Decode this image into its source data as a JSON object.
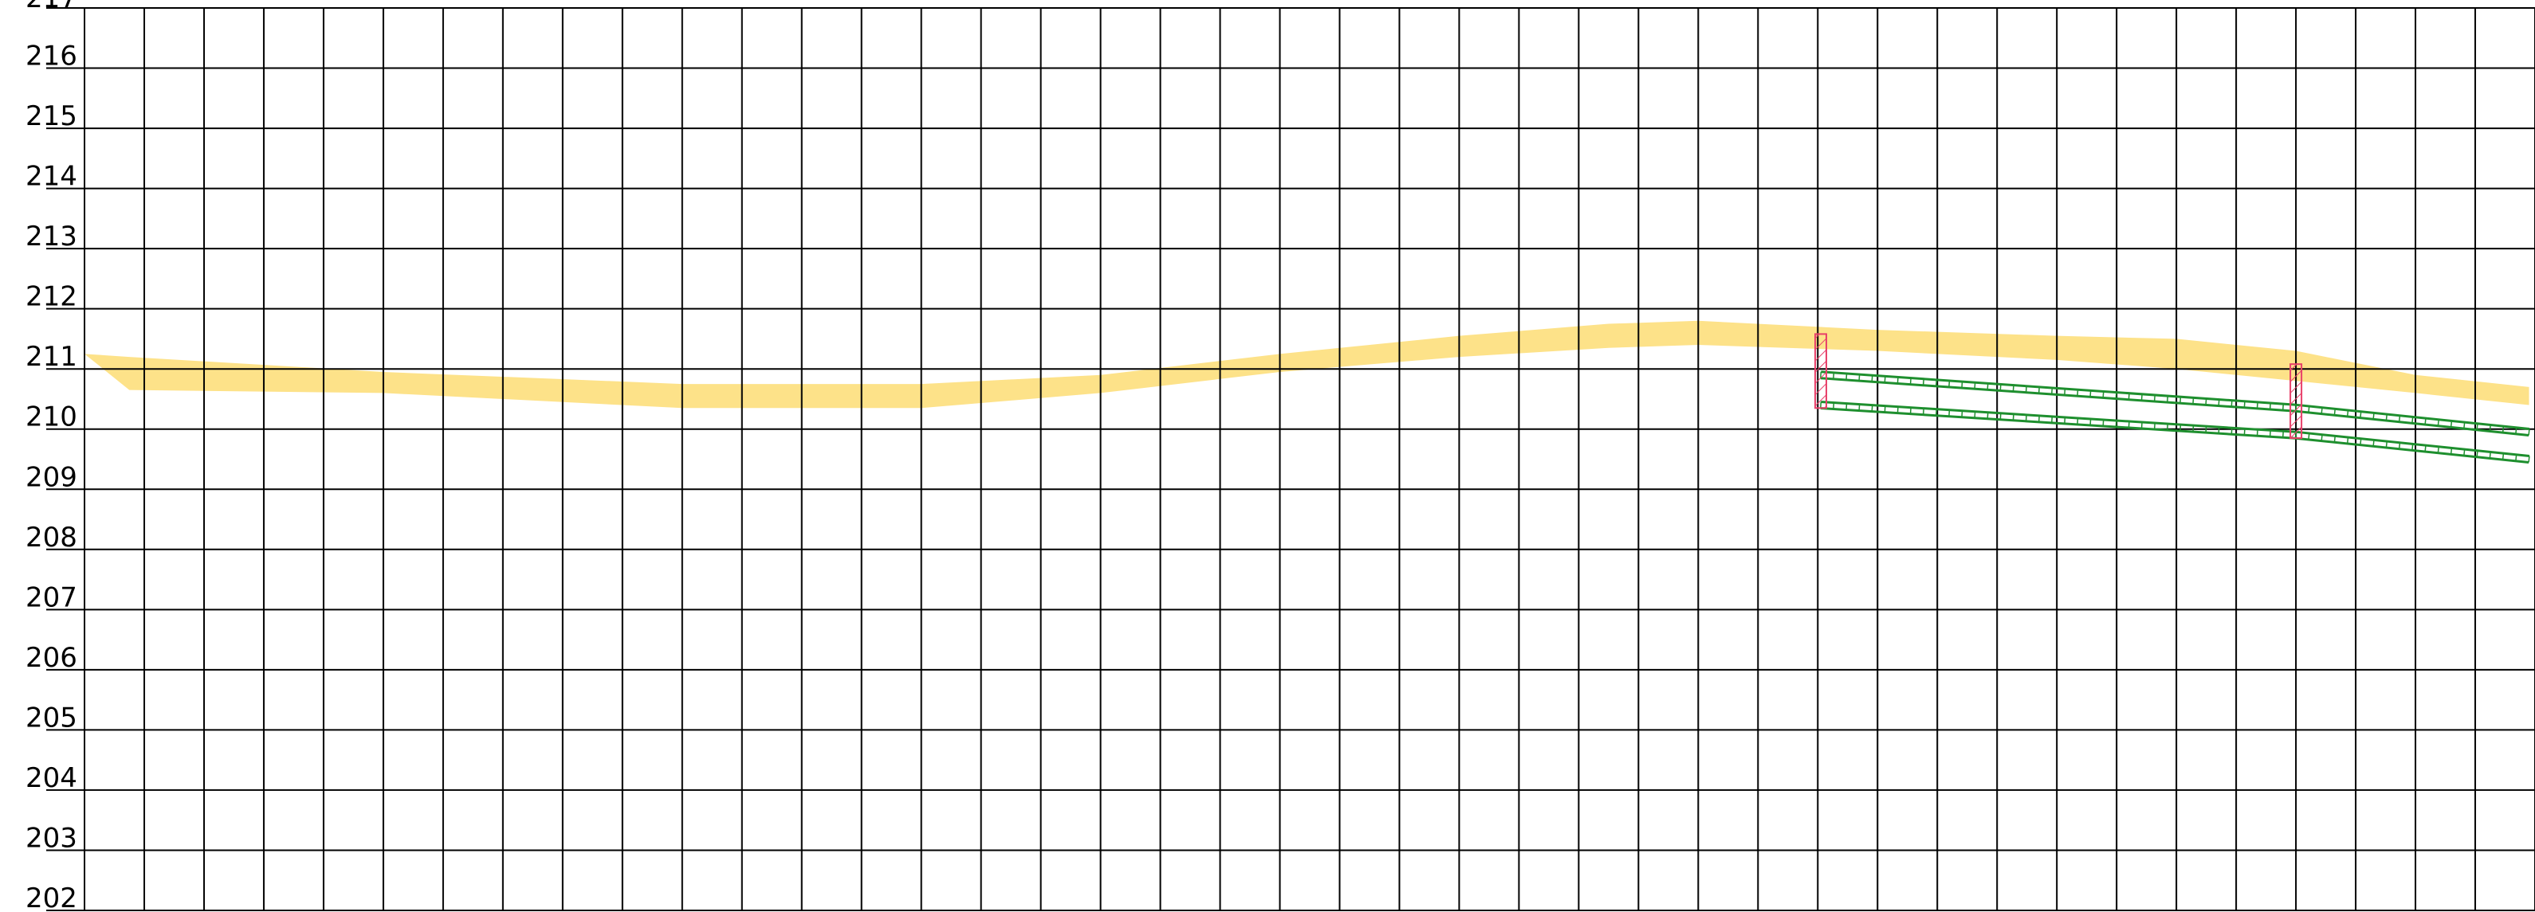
{
  "elevation_axis": {
    "min": 202,
    "max": 217,
    "labels": [
      "217",
      "216",
      "215",
      "214",
      "213",
      "212",
      "211",
      "210",
      "209",
      "208",
      "207",
      "206",
      "205",
      "204",
      "203",
      "202"
    ]
  },
  "grid": {
    "columns": 41
  },
  "colors": {
    "grid": "#000000",
    "ground": "#fde289",
    "pipe": "#1e8f2e",
    "manhole": "#e8406a",
    "background": "#ffffff"
  },
  "ground_band": [
    [
      0,
      211.25,
      211.25
    ],
    [
      0.75,
      211.2,
      210.65
    ],
    [
      5.0,
      210.95,
      210.6
    ],
    [
      10.0,
      210.75,
      210.35
    ],
    [
      14.0,
      210.75,
      210.35
    ],
    [
      17.0,
      210.9,
      210.6
    ],
    [
      20.0,
      211.25,
      210.95
    ],
    [
      23.0,
      211.55,
      211.2
    ],
    [
      25.5,
      211.75,
      211.35
    ],
    [
      27.0,
      211.8,
      211.4
    ],
    [
      30.0,
      211.65,
      211.3
    ],
    [
      33.0,
      211.55,
      211.15
    ],
    [
      35.0,
      211.5,
      211.0
    ],
    [
      37.0,
      211.3,
      210.8
    ],
    [
      39.0,
      210.9,
      210.6
    ],
    [
      40.9,
      210.7,
      210.4
    ]
  ],
  "manholes": [
    {
      "x": 29.05,
      "top": 211.58,
      "bottom": 210.35
    },
    {
      "x": 37.0,
      "top": 211.08,
      "bottom": 209.85
    }
  ],
  "pipe_segments": [
    {
      "x1": 29.05,
      "y1": 210.9,
      "x2": 37.0,
      "y2": 210.35
    },
    {
      "x1": 29.05,
      "y1": 210.4,
      "x2": 37.0,
      "y2": 209.9
    },
    {
      "x1": 37.0,
      "y1": 210.35,
      "x2": 40.9,
      "y2": 209.95
    },
    {
      "x1": 37.0,
      "y1": 209.9,
      "x2": 40.9,
      "y2": 209.5
    }
  ]
}
